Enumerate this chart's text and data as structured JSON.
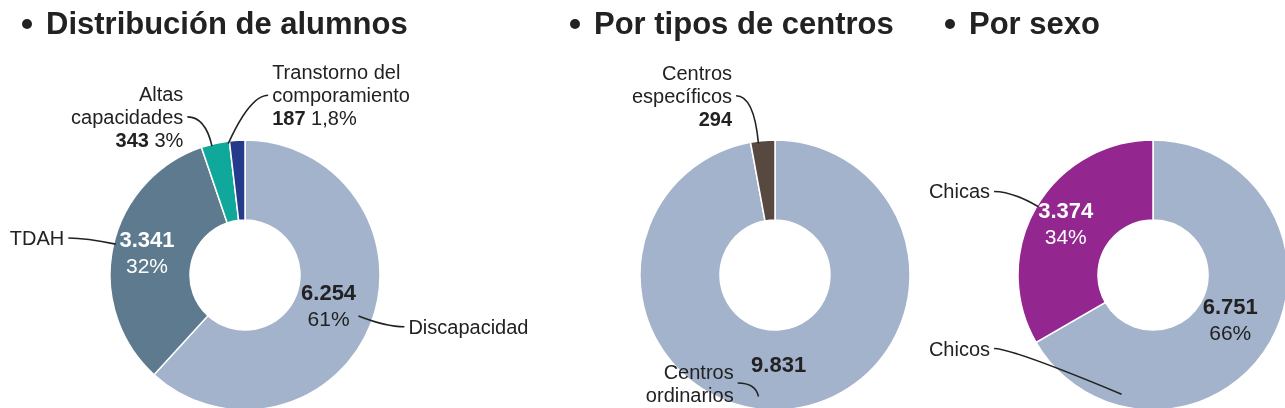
{
  "chart_data": [
    {
      "type": "donut",
      "title": "Distribución de alumnos",
      "categories": [
        "Discapacidad",
        "TDAH",
        "Altas capacidades",
        "Transtorno del comporamiento"
      ],
      "values": [
        6254,
        3341,
        343,
        187
      ],
      "colors": [
        "#a3b3cb",
        "#5e7a8f",
        "#10a89a",
        "#253a8a"
      ],
      "value_labels": [
        "6.254 61%",
        "3.341 32%",
        "343 3%",
        "187 1,8%"
      ]
    },
    {
      "type": "donut",
      "title": "Por tipos de centros",
      "categories": [
        "Centros ordinarios",
        "Centros específicos"
      ],
      "values": [
        9831,
        294
      ],
      "colors": [
        "#a3b3cb",
        "#574840"
      ],
      "value_labels": [
        "9.831",
        "294"
      ]
    },
    {
      "type": "donut",
      "title": "Por sexo",
      "categories": [
        "Chicos",
        "Chicas"
      ],
      "values": [
        6751,
        3374
      ],
      "colors": [
        "#a3b3cb",
        "#93278f"
      ],
      "value_labels": [
        "6.751 66%",
        "3.374 34%"
      ]
    }
  ]
}
